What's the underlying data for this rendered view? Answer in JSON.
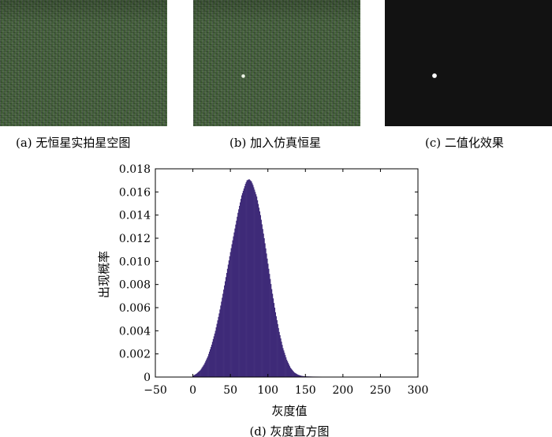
{
  "panels": [
    {
      "caption": "(a) 无恒星实拍星空图"
    },
    {
      "caption": "(b) 加入仿真恒星"
    },
    {
      "caption": "(c) 二值化效果"
    }
  ],
  "colors": {
    "bar": "#3e2a78",
    "background_black": "#121212",
    "sky_green": "#3d5c33"
  },
  "chart_data": {
    "type": "bar",
    "title": "",
    "caption": "(d) 灰度直方图",
    "xlabel": "灰度值",
    "ylabel": "出现概率",
    "xlim": [
      -50,
      300
    ],
    "ylim": [
      0,
      0.018
    ],
    "xticks": [
      "−50",
      "0",
      "50",
      "100",
      "150",
      "200",
      "250",
      "300"
    ],
    "xtick_values": [
      -50,
      0,
      50,
      100,
      150,
      200,
      250,
      300
    ],
    "yticks": [
      "0",
      "0.002",
      "0.004",
      "0.006",
      "0.008",
      "0.010",
      "0.012",
      "0.014",
      "0.016",
      "0.018"
    ],
    "ytick_values": [
      0,
      0.002,
      0.004,
      0.006,
      0.008,
      0.01,
      0.012,
      0.014,
      0.016,
      0.018
    ],
    "grid": false,
    "series": [
      {
        "x": [
          0,
          5,
          10,
          15,
          20,
          25,
          30,
          35,
          40,
          45,
          50,
          55,
          60,
          65,
          70,
          72,
          75,
          78,
          80,
          85,
          90,
          95,
          100,
          105,
          110,
          115,
          120,
          125,
          130,
          135,
          140,
          145,
          150,
          160,
          180,
          200,
          220,
          240,
          255
        ],
        "values": [
          0.0001,
          0.0003,
          0.0006,
          0.0011,
          0.0018,
          0.0028,
          0.004,
          0.0055,
          0.0072,
          0.009,
          0.0108,
          0.0125,
          0.0142,
          0.0157,
          0.0167,
          0.017,
          0.0171,
          0.0169,
          0.0166,
          0.0156,
          0.014,
          0.012,
          0.0098,
          0.0076,
          0.0056,
          0.0039,
          0.0025,
          0.0015,
          0.0008,
          0.0004,
          0.0002,
          0.0001,
          6e-05,
          4e-05,
          3e-05,
          2e-05,
          2e-05,
          2e-05,
          1e-05
        ]
      }
    ]
  }
}
